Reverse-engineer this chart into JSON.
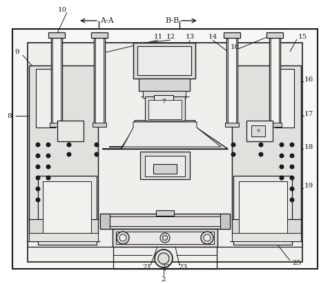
{
  "fig_width": 4.78,
  "fig_height": 4.12,
  "dpi": 100,
  "lc": "#1a1a1a",
  "bg": "#ffffff",
  "fill_light": "#f5f5f0",
  "fill_mid": "#e8e6e2",
  "fill_dark": "#d0ceca"
}
